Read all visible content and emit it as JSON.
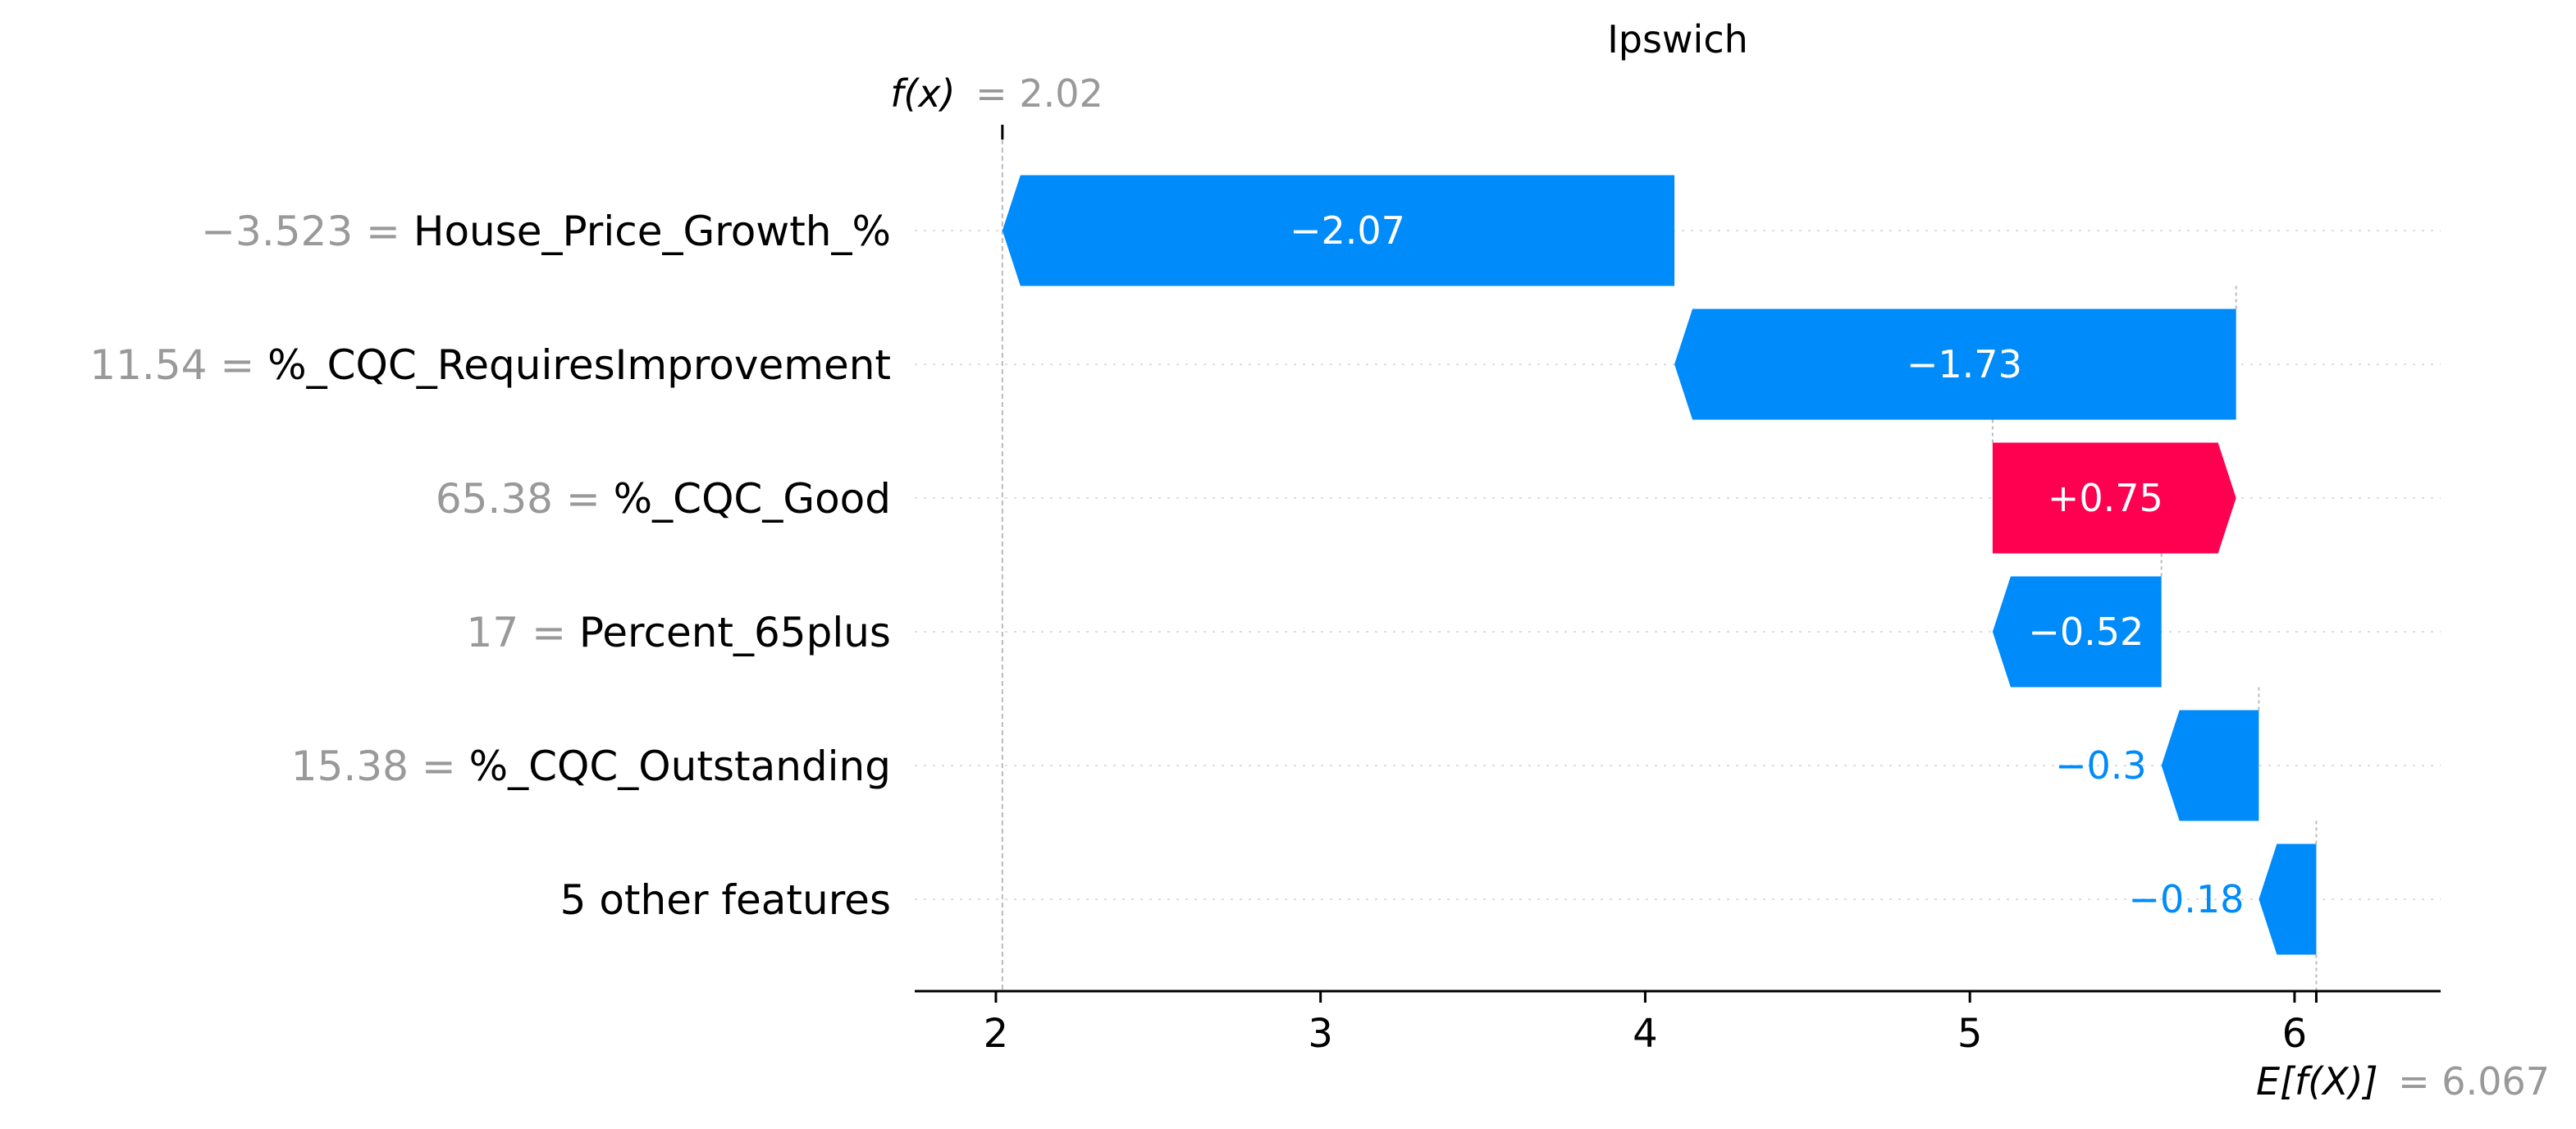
{
  "chart_data": {
    "type": "waterfall",
    "title": "Ipswich",
    "fx": {
      "value": 2.02,
      "label_prefix": "f(x)",
      "value_text": "= 2.02"
    },
    "expected": {
      "value": 6.067,
      "label_prefix": "E[f(X)]",
      "value_text": "= 6.067"
    },
    "xlim": [
      1.75,
      6.45
    ],
    "xticks": [
      2,
      3,
      4,
      5,
      6
    ],
    "xtick_labels": [
      "2",
      "3",
      "4",
      "5",
      "6"
    ],
    "features": [
      {
        "value_text": "−3.523 =",
        "name": "House_Price_Growth_%",
        "contribution": -2.07,
        "label": "−2.07",
        "start": 4.09,
        "end": 2.02
      },
      {
        "value_text": "11.54 =",
        "name": "%_CQC_RequiresImprovement",
        "contribution": -1.73,
        "label": "−1.73",
        "start": 5.82,
        "end": 4.09
      },
      {
        "value_text": "65.38 =",
        "name": "%_CQC_Good",
        "contribution": 0.75,
        "label": "+0.75",
        "start": 5.07,
        "end": 5.82
      },
      {
        "value_text": "17 =",
        "name": "Percent_65plus",
        "contribution": -0.52,
        "label": "−0.52",
        "start": 5.59,
        "end": 5.07
      },
      {
        "value_text": "15.38 =",
        "name": "%_CQC_Outstanding",
        "contribution": -0.3,
        "label": "−0.3",
        "start": 5.89,
        "end": 5.59
      },
      {
        "value_text": "",
        "name": "5 other features",
        "contribution": -0.18,
        "label": "−0.18",
        "start": 6.067,
        "end": 5.89
      }
    ],
    "colors": {
      "negative": "#008bfb",
      "positive": "#ff0051",
      "muted": "#999999"
    },
    "grid": false
  }
}
